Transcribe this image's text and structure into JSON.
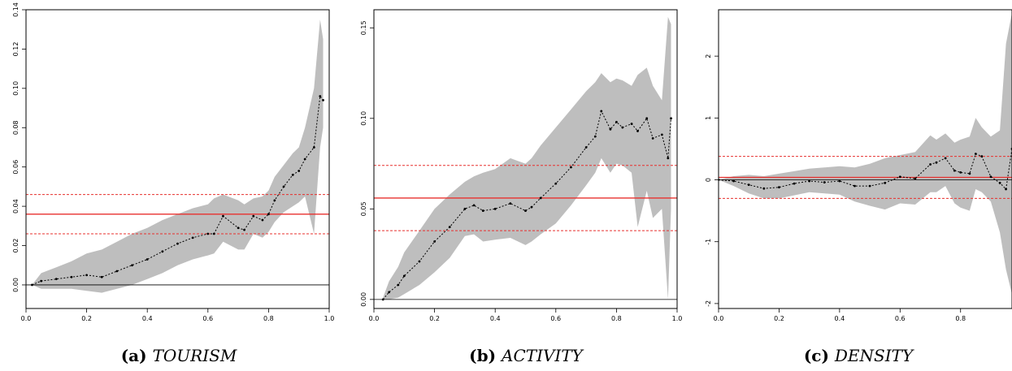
{
  "chart_data": [
    {
      "type": "line",
      "caption_label": "(a)",
      "caption_name": "TOURISM",
      "xlim": [
        0,
        1
      ],
      "ylim": [
        -0.012,
        0.14
      ],
      "xticks": [
        0.0,
        0.2,
        0.4,
        0.6,
        0.8,
        1.0
      ],
      "xtick_labels": [
        "0.0",
        "0.2",
        "0.4",
        "0.6",
        "0.8",
        "1.0"
      ],
      "yticks": [
        0.0,
        0.02,
        0.04,
        0.06,
        0.08,
        0.1,
        0.12,
        0.14
      ],
      "ytick_labels": [
        "0.00",
        "0.02",
        "0.04",
        "0.06",
        "0.08",
        "0.10",
        "0.12",
        "0.14"
      ],
      "hline_zero": 0,
      "hline_mean": 0.036,
      "hline_band": [
        0.026,
        0.046
      ],
      "x": [
        0.02,
        0.05,
        0.1,
        0.15,
        0.2,
        0.25,
        0.3,
        0.35,
        0.4,
        0.45,
        0.5,
        0.55,
        0.6,
        0.62,
        0.65,
        0.7,
        0.72,
        0.75,
        0.78,
        0.8,
        0.82,
        0.85,
        0.88,
        0.9,
        0.92,
        0.95,
        0.97,
        0.98
      ],
      "y": [
        0.0,
        0.002,
        0.003,
        0.004,
        0.005,
        0.004,
        0.007,
        0.01,
        0.013,
        0.017,
        0.021,
        0.024,
        0.026,
        0.026,
        0.035,
        0.029,
        0.028,
        0.035,
        0.033,
        0.036,
        0.043,
        0.05,
        0.056,
        0.058,
        0.064,
        0.07,
        0.096,
        0.094
      ],
      "upper": [
        0.0,
        0.006,
        0.009,
        0.012,
        0.016,
        0.018,
        0.022,
        0.026,
        0.029,
        0.033,
        0.036,
        0.039,
        0.041,
        0.044,
        0.046,
        0.043,
        0.041,
        0.044,
        0.045,
        0.048,
        0.055,
        0.061,
        0.067,
        0.07,
        0.08,
        0.1,
        0.135,
        0.125
      ],
      "lower": [
        0.0,
        -0.002,
        -0.002,
        -0.002,
        -0.003,
        -0.004,
        -0.002,
        0.0,
        0.003,
        0.006,
        0.01,
        0.013,
        0.015,
        0.016,
        0.022,
        0.018,
        0.018,
        0.026,
        0.024,
        0.027,
        0.032,
        0.037,
        0.04,
        0.042,
        0.045,
        0.026,
        0.07,
        0.08
      ]
    },
    {
      "type": "line",
      "caption_label": "(b)",
      "caption_name": "ACTIVITY",
      "xlim": [
        0,
        1
      ],
      "ylim": [
        -0.005,
        0.16
      ],
      "xticks": [
        0.0,
        0.2,
        0.4,
        0.6,
        0.8,
        1.0
      ],
      "xtick_labels": [
        "0.0",
        "0.2",
        "0.4",
        "0.6",
        "0.8",
        "1.0"
      ],
      "yticks": [
        0.0,
        0.05,
        0.1,
        0.15
      ],
      "ytick_labels": [
        "0.00",
        "0.05",
        "0.10",
        "0.15"
      ],
      "hline_zero": 0,
      "hline_mean": 0.056,
      "hline_band": [
        0.038,
        0.074
      ],
      "x": [
        0.03,
        0.05,
        0.08,
        0.1,
        0.15,
        0.2,
        0.25,
        0.3,
        0.33,
        0.36,
        0.4,
        0.45,
        0.5,
        0.52,
        0.55,
        0.6,
        0.65,
        0.7,
        0.73,
        0.75,
        0.78,
        0.8,
        0.82,
        0.85,
        0.87,
        0.9,
        0.92,
        0.95,
        0.97,
        0.98
      ],
      "y": [
        0.0,
        0.004,
        0.008,
        0.013,
        0.021,
        0.032,
        0.04,
        0.05,
        0.052,
        0.049,
        0.05,
        0.053,
        0.049,
        0.051,
        0.056,
        0.064,
        0.073,
        0.084,
        0.09,
        0.104,
        0.094,
        0.098,
        0.095,
        0.097,
        0.093,
        0.1,
        0.089,
        0.091,
        0.078,
        0.1
      ],
      "upper": [
        0.001,
        0.01,
        0.018,
        0.026,
        0.038,
        0.05,
        0.058,
        0.065,
        0.068,
        0.07,
        0.072,
        0.078,
        0.075,
        0.078,
        0.085,
        0.095,
        0.105,
        0.115,
        0.12,
        0.125,
        0.12,
        0.122,
        0.121,
        0.118,
        0.124,
        0.128,
        0.118,
        0.11,
        0.156,
        0.152
      ],
      "lower": [
        0.0,
        0.0,
        0.001,
        0.003,
        0.008,
        0.015,
        0.023,
        0.035,
        0.036,
        0.032,
        0.033,
        0.034,
        0.03,
        0.032,
        0.036,
        0.042,
        0.052,
        0.063,
        0.07,
        0.078,
        0.07,
        0.075,
        0.074,
        0.07,
        0.04,
        0.06,
        0.045,
        0.05,
        0.0,
        0.05
      ]
    },
    {
      "type": "line",
      "caption_label": "(c)",
      "caption_name": "DENSITY",
      "xlim": [
        0,
        0.97
      ],
      "ylim": [
        -2.08,
        2.75
      ],
      "xticks": [
        0.0,
        0.2,
        0.4,
        0.6,
        0.8
      ],
      "xtick_labels": [
        "0.0",
        "0.2",
        "0.4",
        "0.6",
        "0.8"
      ],
      "yticks": [
        -2,
        -1,
        0,
        1,
        2
      ],
      "ytick_labels": [
        "-2",
        "-1",
        "0",
        "1",
        "2"
      ],
      "hline_zero": 0,
      "hline_mean": 0.04,
      "hline_band": [
        -0.3,
        0.38
      ],
      "x": [
        0.0,
        0.05,
        0.1,
        0.15,
        0.2,
        0.25,
        0.3,
        0.35,
        0.4,
        0.45,
        0.5,
        0.55,
        0.6,
        0.65,
        0.7,
        0.72,
        0.75,
        0.78,
        0.8,
        0.83,
        0.85,
        0.87,
        0.9,
        0.93,
        0.95,
        0.97
      ],
      "y": [
        0.0,
        -0.02,
        -0.08,
        -0.14,
        -0.12,
        -0.06,
        -0.02,
        -0.04,
        -0.02,
        -0.1,
        -0.1,
        -0.05,
        0.05,
        0.02,
        0.25,
        0.28,
        0.35,
        0.15,
        0.12,
        0.1,
        0.42,
        0.38,
        0.05,
        -0.05,
        -0.15,
        0.5
      ],
      "upper": [
        0.0,
        0.06,
        0.08,
        0.06,
        0.1,
        0.14,
        0.18,
        0.2,
        0.22,
        0.2,
        0.26,
        0.35,
        0.4,
        0.45,
        0.72,
        0.65,
        0.75,
        0.6,
        0.65,
        0.7,
        1.0,
        0.85,
        0.7,
        0.8,
        2.2,
        2.7
      ],
      "lower": [
        0.0,
        -0.1,
        -0.22,
        -0.3,
        -0.3,
        -0.25,
        -0.2,
        -0.22,
        -0.24,
        -0.35,
        -0.42,
        -0.48,
        -0.38,
        -0.4,
        -0.2,
        -0.2,
        -0.1,
        -0.38,
        -0.45,
        -0.5,
        -0.15,
        -0.2,
        -0.35,
        -0.85,
        -1.45,
        -1.85
      ]
    }
  ]
}
